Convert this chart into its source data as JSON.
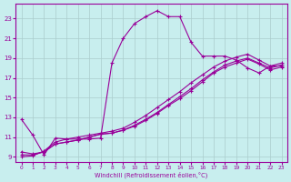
{
  "xlabel": "Windchill (Refroidissement éolien,°C)",
  "bg_color": "#c8eeee",
  "grid_color": "#aacccc",
  "line_color": "#990099",
  "xlim": [
    -0.5,
    23.5
  ],
  "ylim": [
    8.5,
    24.5
  ],
  "yticks": [
    9,
    11,
    13,
    15,
    17,
    19,
    21,
    23
  ],
  "xticks": [
    0,
    1,
    2,
    3,
    4,
    5,
    6,
    7,
    8,
    9,
    10,
    11,
    12,
    13,
    14,
    15,
    16,
    17,
    18,
    19,
    20,
    21,
    22,
    23
  ],
  "line1_x": [
    0,
    1,
    2,
    3,
    4,
    5,
    6,
    7,
    8,
    9,
    10,
    11,
    12,
    13,
    14,
    15,
    16,
    17,
    18,
    19,
    20,
    21,
    22,
    23
  ],
  "line1_y": [
    12.8,
    11.2,
    9.2,
    10.9,
    10.8,
    10.8,
    10.8,
    10.9,
    18.5,
    21.0,
    22.5,
    23.2,
    23.8,
    23.2,
    23.2,
    20.6,
    19.2,
    19.2,
    19.2,
    18.8,
    18.0,
    17.5,
    18.2,
    18.2
  ],
  "line2_x": [
    0,
    1,
    2,
    3,
    4,
    5,
    6,
    7,
    8,
    9,
    10,
    11,
    12,
    13,
    14,
    15,
    16,
    17,
    18,
    19,
    20,
    21,
    22,
    23
  ],
  "line2_y": [
    9.5,
    9.3,
    9.5,
    10.3,
    10.5,
    10.7,
    11.0,
    11.3,
    11.4,
    11.7,
    12.2,
    12.8,
    13.5,
    14.3,
    15.1,
    15.9,
    16.8,
    17.6,
    18.3,
    18.7,
    19.0,
    18.5,
    18.0,
    18.3
  ],
  "line3_x": [
    0,
    1,
    2,
    3,
    4,
    5,
    6,
    7,
    8,
    9,
    10,
    11,
    12,
    13,
    14,
    15,
    16,
    17,
    18,
    19,
    20,
    21,
    22,
    23
  ],
  "line3_y": [
    9.2,
    9.2,
    9.5,
    10.3,
    10.5,
    10.7,
    11.0,
    11.3,
    11.4,
    11.7,
    12.1,
    12.7,
    13.4,
    14.2,
    14.9,
    15.7,
    16.6,
    17.5,
    18.1,
    18.5,
    18.9,
    18.4,
    17.8,
    18.1
  ],
  "line4_x": [
    0,
    1,
    2,
    3,
    4,
    5,
    6,
    7,
    8,
    9,
    10,
    11,
    12,
    13,
    14,
    15,
    16,
    17,
    18,
    19,
    20,
    21,
    22,
    23
  ],
  "line4_y": [
    9.0,
    9.1,
    9.6,
    10.5,
    10.8,
    11.0,
    11.2,
    11.4,
    11.6,
    11.9,
    12.5,
    13.2,
    14.0,
    14.8,
    15.6,
    16.5,
    17.3,
    18.1,
    18.7,
    19.1,
    19.4,
    18.8,
    18.2,
    18.5
  ]
}
